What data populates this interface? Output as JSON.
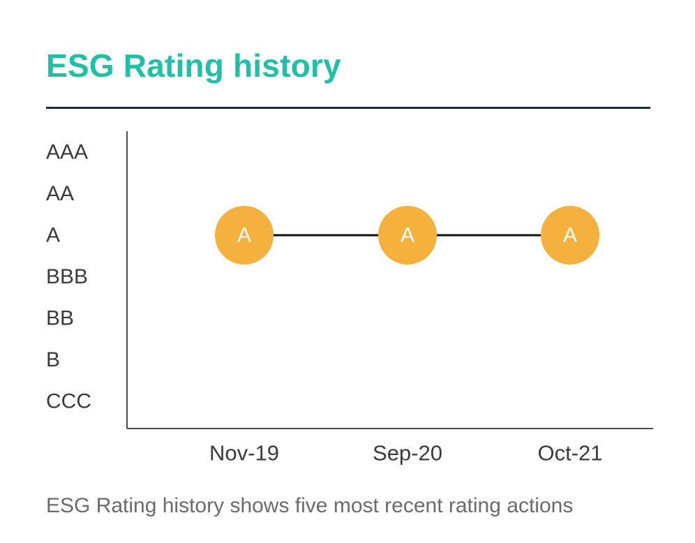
{
  "title": "ESG Rating history",
  "caption": "ESG Rating history shows five most recent rating actions",
  "chart_data": {
    "type": "line",
    "title": "ESG Rating history",
    "y_categories": [
      "AAA",
      "AA",
      "A",
      "BBB",
      "BB",
      "B",
      "CCC"
    ],
    "x": [
      "Nov-19",
      "Sep-20",
      "Oct-21"
    ],
    "values": [
      "A",
      "A",
      "A"
    ],
    "marker_labels": [
      "A",
      "A",
      "A"
    ],
    "grid": false,
    "colors": {
      "marker": "#f5b13d",
      "marker_text": "#ffffff",
      "line": "#111111",
      "axis": "#4a4a4a",
      "tick_text": "#3a3a3a",
      "title": "#1fbfa8"
    }
  }
}
